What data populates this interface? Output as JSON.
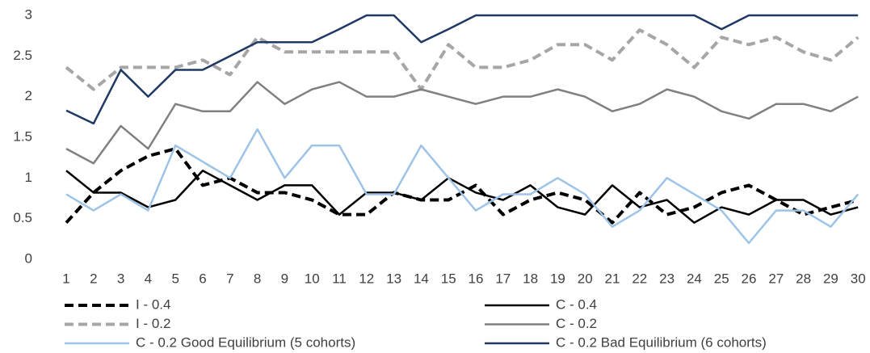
{
  "chart_data": {
    "type": "line",
    "categories": [
      1,
      2,
      3,
      4,
      5,
      6,
      7,
      8,
      9,
      10,
      11,
      12,
      13,
      14,
      15,
      16,
      17,
      18,
      19,
      20,
      21,
      22,
      23,
      24,
      25,
      26,
      27,
      28,
      29,
      30
    ],
    "ylim": [
      0,
      3
    ],
    "yticks": [
      0,
      0.5,
      1,
      1.5,
      2,
      2.5,
      3
    ],
    "grid": false,
    "series": [
      {
        "name": "I - 0.4",
        "color": "#000000",
        "dashed": true,
        "values": [
          0.45,
          0.82,
          1.09,
          1.27,
          1.36,
          0.91,
          1.0,
          0.82,
          0.82,
          0.73,
          0.55,
          0.55,
          0.82,
          0.73,
          0.73,
          0.91,
          0.55,
          0.73,
          0.82,
          0.73,
          0.45,
          0.82,
          0.55,
          0.64,
          0.82,
          0.91,
          0.73,
          0.55,
          0.64,
          0.73
        ]
      },
      {
        "name": "C - 0.4",
        "color": "#000000",
        "dashed": false,
        "values": [
          1.09,
          0.82,
          0.82,
          0.64,
          0.73,
          1.09,
          0.91,
          0.73,
          0.91,
          0.91,
          0.55,
          0.82,
          0.82,
          0.73,
          1.0,
          0.82,
          0.73,
          0.91,
          0.64,
          0.55,
          0.91,
          0.64,
          0.73,
          0.45,
          0.64,
          0.55,
          0.73,
          0.73,
          0.55,
          0.64
        ]
      },
      {
        "name": "I - 0.2",
        "color": "#a6a6a6",
        "dashed": true,
        "values": [
          2.36,
          2.09,
          2.36,
          2.36,
          2.36,
          2.45,
          2.27,
          2.73,
          2.55,
          2.55,
          2.55,
          2.55,
          2.55,
          2.09,
          2.64,
          2.36,
          2.36,
          2.45,
          2.64,
          2.64,
          2.45,
          2.82,
          2.64,
          2.36,
          2.73,
          2.64,
          2.73,
          2.55,
          2.45,
          2.73
        ]
      },
      {
        "name": "C - 0.2",
        "color": "#808080",
        "dashed": false,
        "values": [
          1.36,
          1.18,
          1.64,
          1.36,
          1.91,
          1.82,
          1.82,
          2.18,
          1.91,
          2.09,
          2.18,
          2.0,
          2.0,
          2.09,
          2.0,
          1.91,
          2.0,
          2.0,
          2.09,
          2.0,
          1.82,
          1.91,
          2.09,
          2.0,
          1.82,
          1.73,
          1.91,
          1.91,
          1.82,
          2.0
        ]
      },
      {
        "name": "C - 0.2 Good Equilibrium (5 cohorts)",
        "color": "#9dc3e6",
        "dashed": false,
        "values": [
          0.8,
          0.6,
          0.8,
          0.6,
          1.4,
          1.2,
          1.0,
          1.6,
          1.0,
          1.4,
          1.4,
          0.8,
          0.8,
          1.4,
          1.0,
          0.6,
          0.8,
          0.8,
          1.0,
          0.8,
          0.4,
          0.6,
          1.0,
          0.8,
          0.6,
          0.2,
          0.6,
          0.6,
          0.4,
          0.8
        ]
      },
      {
        "name": "C - 0.2 Bad Equilibrium (6 cohorts)",
        "color": "#203864",
        "dashed": false,
        "values": [
          1.83,
          1.67,
          2.33,
          2.0,
          2.33,
          2.33,
          2.5,
          2.67,
          2.67,
          2.67,
          2.83,
          3,
          3,
          2.67,
          2.83,
          3,
          3,
          3,
          3,
          3,
          3,
          3,
          3,
          3,
          2.83,
          3,
          3,
          3,
          3,
          3
        ]
      }
    ]
  }
}
